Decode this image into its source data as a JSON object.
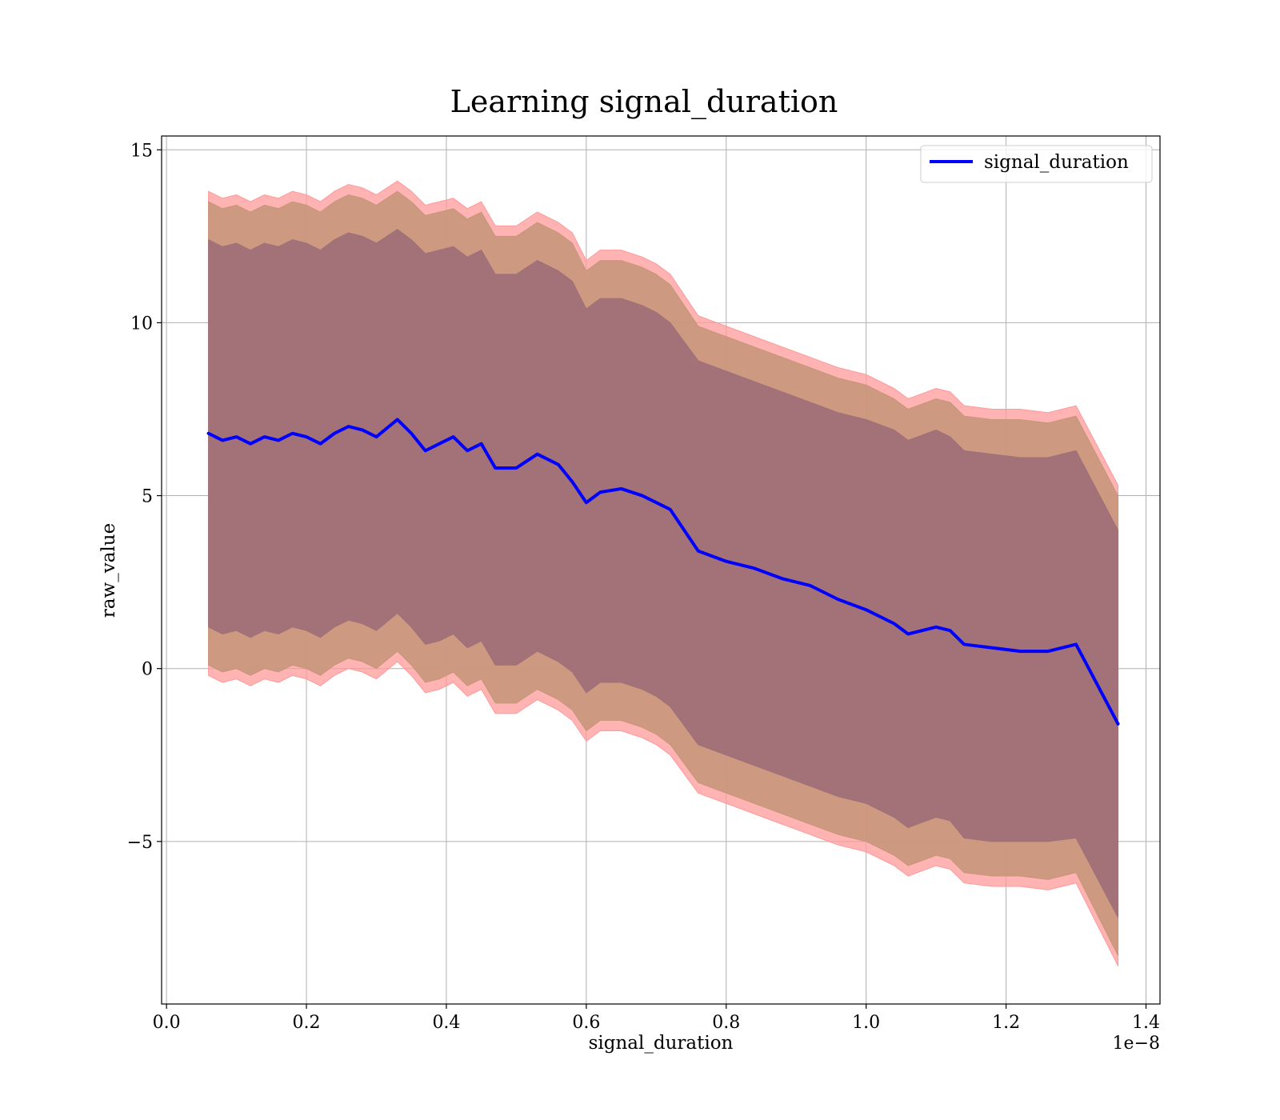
{
  "chart_data": {
    "type": "line",
    "title": "Learning signal_duration",
    "xlabel": "signal_duration",
    "ylabel": "raw_value",
    "x_offset_text": "1e−8",
    "xlim": [
      -0.007,
      1.42
    ],
    "ylim": [
      -9.7,
      15.4
    ],
    "x_ticks": [
      0.0,
      0.2,
      0.4,
      0.6,
      0.8,
      1.0,
      1.2,
      1.4
    ],
    "x_tick_labels": [
      "0.0",
      "0.2",
      "0.4",
      "0.6",
      "0.8",
      "1.0",
      "1.2",
      "1.4"
    ],
    "y_ticks": [
      -5,
      0,
      5,
      10,
      15
    ],
    "y_tick_labels": [
      "−5",
      "0",
      "5",
      "10",
      "15"
    ],
    "grid": true,
    "legend": {
      "position": "top-right",
      "entries": [
        "signal_duration"
      ]
    },
    "colors": {
      "line": "#0000ff",
      "outer_band": "#ff9999",
      "middle_band": "#c8967a",
      "inner_band": "#a07078"
    },
    "series": [
      {
        "name": "signal_duration",
        "x": [
          0.06,
          0.08,
          0.1,
          0.12,
          0.14,
          0.16,
          0.18,
          0.2,
          0.22,
          0.24,
          0.26,
          0.28,
          0.3,
          0.33,
          0.35,
          0.37,
          0.39,
          0.41,
          0.43,
          0.45,
          0.47,
          0.5,
          0.53,
          0.56,
          0.58,
          0.6,
          0.62,
          0.65,
          0.68,
          0.7,
          0.72,
          0.76,
          0.8,
          0.84,
          0.88,
          0.92,
          0.96,
          1.0,
          1.04,
          1.06,
          1.1,
          1.12,
          1.14,
          1.18,
          1.22,
          1.26,
          1.3,
          1.36
        ],
        "y": [
          6.8,
          6.6,
          6.7,
          6.5,
          6.7,
          6.6,
          6.8,
          6.7,
          6.5,
          6.8,
          7.0,
          6.9,
          6.7,
          7.2,
          6.8,
          6.3,
          6.5,
          6.7,
          6.3,
          6.5,
          5.8,
          5.8,
          6.2,
          5.9,
          5.4,
          4.8,
          5.1,
          5.2,
          5.0,
          4.8,
          4.6,
          3.4,
          3.1,
          2.9,
          2.6,
          2.4,
          2.0,
          1.7,
          1.3,
          1.0,
          1.2,
          1.1,
          0.7,
          0.6,
          0.5,
          0.5,
          0.7,
          -1.6
        ]
      }
    ],
    "bands": [
      {
        "upper": [
          13.8,
          13.6,
          13.7,
          13.5,
          13.7,
          13.6,
          13.8,
          13.7,
          13.5,
          13.8,
          14.0,
          13.9,
          13.7,
          14.1,
          13.8,
          13.4,
          13.5,
          13.6,
          13.3,
          13.5,
          12.8,
          12.8,
          13.2,
          12.9,
          12.6,
          11.8,
          12.1,
          12.1,
          11.9,
          11.7,
          11.4,
          10.2,
          9.9,
          9.6,
          9.3,
          9.0,
          8.7,
          8.5,
          8.1,
          7.8,
          8.1,
          8.0,
          7.6,
          7.5,
          7.5,
          7.4,
          7.6,
          5.3
        ],
        "lower": [
          -0.2,
          -0.4,
          -0.3,
          -0.5,
          -0.3,
          -0.4,
          -0.2,
          -0.3,
          -0.5,
          -0.2,
          0.0,
          -0.1,
          -0.3,
          0.2,
          -0.2,
          -0.7,
          -0.6,
          -0.4,
          -0.8,
          -0.6,
          -1.3,
          -1.3,
          -0.9,
          -1.2,
          -1.5,
          -2.1,
          -1.8,
          -1.8,
          -2.0,
          -2.2,
          -2.5,
          -3.6,
          -3.9,
          -4.2,
          -4.5,
          -4.8,
          -5.1,
          -5.3,
          -5.7,
          -6.0,
          -5.7,
          -5.8,
          -6.2,
          -6.3,
          -6.3,
          -6.4,
          -6.2,
          -8.6
        ]
      },
      {
        "upper": [
          13.5,
          13.3,
          13.4,
          13.2,
          13.4,
          13.3,
          13.5,
          13.4,
          13.2,
          13.5,
          13.7,
          13.6,
          13.4,
          13.8,
          13.5,
          13.1,
          13.2,
          13.3,
          13.0,
          13.2,
          12.5,
          12.5,
          12.9,
          12.6,
          12.3,
          11.5,
          11.8,
          11.8,
          11.6,
          11.4,
          11.1,
          9.9,
          9.6,
          9.3,
          9.0,
          8.7,
          8.4,
          8.2,
          7.8,
          7.5,
          7.8,
          7.7,
          7.3,
          7.2,
          7.2,
          7.1,
          7.3,
          5.0
        ],
        "lower": [
          0.1,
          -0.1,
          0.0,
          -0.2,
          0.0,
          -0.1,
          0.1,
          0.0,
          -0.2,
          0.1,
          0.3,
          0.2,
          0.0,
          0.5,
          0.1,
          -0.4,
          -0.3,
          -0.1,
          -0.5,
          -0.3,
          -1.0,
          -1.0,
          -0.6,
          -0.9,
          -1.2,
          -1.8,
          -1.5,
          -1.5,
          -1.7,
          -1.9,
          -2.2,
          -3.3,
          -3.6,
          -3.9,
          -4.2,
          -4.5,
          -4.8,
          -5.0,
          -5.4,
          -5.7,
          -5.4,
          -5.5,
          -5.9,
          -6.0,
          -6.0,
          -6.1,
          -5.9,
          -8.3
        ]
      },
      {
        "upper": [
          12.4,
          12.2,
          12.3,
          12.1,
          12.3,
          12.2,
          12.4,
          12.3,
          12.1,
          12.4,
          12.6,
          12.5,
          12.3,
          12.7,
          12.4,
          12.0,
          12.1,
          12.2,
          11.9,
          12.1,
          11.4,
          11.4,
          11.8,
          11.5,
          11.2,
          10.4,
          10.7,
          10.7,
          10.5,
          10.3,
          10.0,
          8.9,
          8.6,
          8.3,
          8.0,
          7.7,
          7.4,
          7.2,
          6.9,
          6.6,
          6.9,
          6.7,
          6.3,
          6.2,
          6.1,
          6.1,
          6.3,
          4.0
        ],
        "lower": [
          1.2,
          1.0,
          1.1,
          0.9,
          1.1,
          1.0,
          1.2,
          1.1,
          0.9,
          1.2,
          1.4,
          1.3,
          1.1,
          1.6,
          1.2,
          0.7,
          0.8,
          1.0,
          0.6,
          0.8,
          0.1,
          0.1,
          0.5,
          0.2,
          -0.1,
          -0.7,
          -0.4,
          -0.4,
          -0.6,
          -0.8,
          -1.1,
          -2.2,
          -2.5,
          -2.8,
          -3.1,
          -3.4,
          -3.7,
          -3.9,
          -4.3,
          -4.6,
          -4.3,
          -4.4,
          -4.9,
          -5.0,
          -5.0,
          -5.0,
          -4.9,
          -7.2
        ]
      }
    ]
  }
}
